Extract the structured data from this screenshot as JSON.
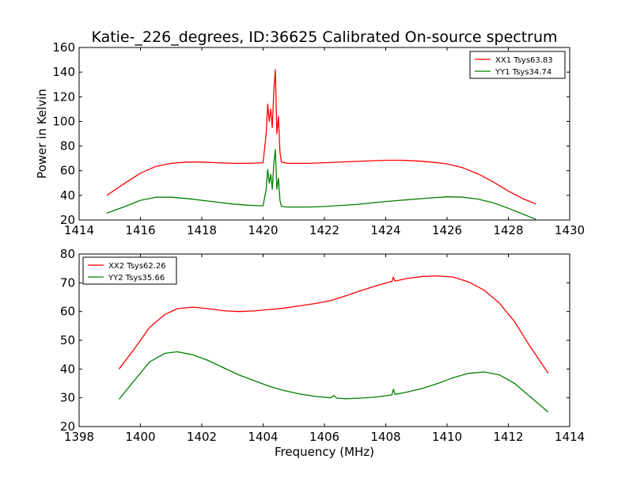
{
  "chart_data": [
    {
      "type": "line",
      "title": "Katie-_226_degrees, ID:36625 Calibrated On-source spectrum",
      "xlabel": "",
      "ylabel": "Power in Kelvin",
      "xlim": [
        1414,
        1430
      ],
      "ylim": [
        20,
        160
      ],
      "xticks": [
        "1414",
        "1416",
        "1418",
        "1420",
        "1422",
        "1424",
        "1426",
        "1428",
        "1430"
      ],
      "yticks": [
        "20",
        "40",
        "60",
        "80",
        "100",
        "120",
        "140",
        "160"
      ],
      "grid": false,
      "legend_position": "top-right",
      "series": [
        {
          "name": "XX1 Tsys63.83",
          "color": "#ff0000",
          "x": [
            1414.9,
            1415.5,
            1416.0,
            1416.5,
            1417.0,
            1417.5,
            1418.0,
            1418.5,
            1419.0,
            1419.5,
            1420.0,
            1420.1,
            1420.15,
            1420.2,
            1420.25,
            1420.3,
            1420.35,
            1420.4,
            1420.45,
            1420.5,
            1420.55,
            1420.6,
            1420.8,
            1421.5,
            1422.0,
            1423.0,
            1424.0,
            1424.5,
            1425.0,
            1425.5,
            1426.0,
            1426.5,
            1427.0,
            1427.5,
            1428.0,
            1428.5,
            1428.9
          ],
          "y": [
            40,
            50,
            58,
            63.5,
            66,
            67,
            67,
            66.5,
            66,
            66,
            66.5,
            90,
            114,
            100,
            110,
            95,
            125,
            142,
            90,
            104,
            75,
            67,
            66,
            66,
            66.5,
            67.5,
            68.5,
            68.5,
            68,
            67,
            65.5,
            62.5,
            57.5,
            51,
            43.5,
            37,
            33
          ]
        },
        {
          "name": "YY1 Tsys34.74",
          "color": "#008000",
          "x": [
            1414.9,
            1415.5,
            1416.0,
            1416.5,
            1417.0,
            1417.5,
            1418.0,
            1418.5,
            1419.0,
            1419.5,
            1420.0,
            1420.1,
            1420.15,
            1420.2,
            1420.25,
            1420.3,
            1420.35,
            1420.4,
            1420.45,
            1420.5,
            1420.55,
            1420.6,
            1420.8,
            1421.5,
            1422.0,
            1423.0,
            1424.0,
            1425.0,
            1425.5,
            1426.0,
            1426.5,
            1427.0,
            1427.5,
            1428.0,
            1428.5,
            1428.9
          ],
          "y": [
            25.5,
            31,
            36,
            38.5,
            38.5,
            37.5,
            36,
            34.5,
            33,
            32,
            31.5,
            45,
            61,
            50,
            57,
            45,
            66,
            77,
            45,
            54,
            36,
            31,
            30.5,
            30.5,
            31,
            32.5,
            35,
            37,
            38,
            38.8,
            38.5,
            37,
            34,
            29.5,
            24.5,
            20.5
          ]
        }
      ]
    },
    {
      "type": "line",
      "title": "",
      "xlabel": "Frequency (MHz)",
      "ylabel": "",
      "xlim": [
        1398,
        1414
      ],
      "ylim": [
        20,
        80
      ],
      "xticks": [
        "1398",
        "1400",
        "1402",
        "1404",
        "1406",
        "1408",
        "1410",
        "1412",
        "1414"
      ],
      "yticks": [
        "20",
        "30",
        "40",
        "50",
        "60",
        "70",
        "80"
      ],
      "grid": false,
      "legend_position": "top-left",
      "series": [
        {
          "name": "XX2 Tsys62.26",
          "color": "#ff0000",
          "x": [
            1399.3,
            1399.8,
            1400.3,
            1400.8,
            1401.2,
            1401.7,
            1402.2,
            1402.7,
            1403.2,
            1403.7,
            1404.2,
            1404.7,
            1405.2,
            1405.7,
            1406.2,
            1406.7,
            1407.2,
            1407.7,
            1408.2,
            1408.25,
            1408.3,
            1408.7,
            1409.2,
            1409.7,
            1410.2,
            1410.7,
            1411.2,
            1411.7,
            1412.2,
            1412.7,
            1413.3
          ],
          "y": [
            40,
            47,
            54.5,
            59,
            61,
            61.5,
            61,
            60.3,
            60,
            60.2,
            60.7,
            61.2,
            62,
            62.8,
            63.8,
            65.5,
            67.3,
            69,
            70.5,
            72,
            70.6,
            71.5,
            72.2,
            72.4,
            72,
            70.3,
            67.5,
            63,
            56.5,
            48,
            38.5
          ]
        },
        {
          "name": "YY2 Tsys35.66",
          "color": "#008000",
          "x": [
            1399.3,
            1399.8,
            1400.3,
            1400.8,
            1401.2,
            1401.7,
            1402.2,
            1402.7,
            1403.2,
            1403.7,
            1404.2,
            1404.7,
            1405.2,
            1405.7,
            1406.2,
            1406.3,
            1406.4,
            1406.7,
            1407.2,
            1407.7,
            1408.2,
            1408.25,
            1408.3,
            1408.7,
            1409.2,
            1409.7,
            1410.2,
            1410.7,
            1411.2,
            1411.7,
            1412.2,
            1412.7,
            1413.3
          ],
          "y": [
            29.5,
            36,
            42.5,
            45.5,
            46,
            45,
            43,
            40.5,
            38,
            36,
            34,
            32.5,
            31.3,
            30.5,
            30,
            30.8,
            29.9,
            29.7,
            29.9,
            30.3,
            31,
            33,
            31.2,
            32,
            33.3,
            35,
            37,
            38.5,
            39,
            38,
            35,
            30.5,
            25
          ]
        }
      ]
    }
  ]
}
